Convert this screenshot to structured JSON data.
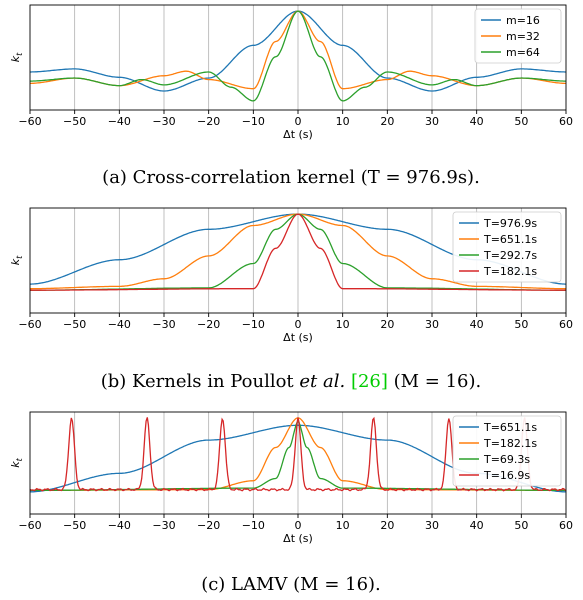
{
  "chart_data": [
    {
      "type": "line",
      "xlabel": "Δt (s)",
      "ylabel": "k_t",
      "xlim": [
        -60,
        60
      ],
      "xticks": [
        "−60",
        "−50",
        "−40",
        "−30",
        "−20",
        "−10",
        "0",
        "10",
        "20",
        "30",
        "40",
        "50",
        "60"
      ],
      "grid": "vertical",
      "legend": "top-right",
      "caption": "(a) Cross-correlation kernel (T = 976.9s).",
      "series": [
        {
          "name": "m=16",
          "color": "#1f77b4",
          "x": [
            -60,
            -50,
            -40,
            -30,
            -20,
            -10,
            0,
            10,
            20,
            30,
            40,
            50,
            60
          ],
          "y": [
            0.2,
            0.24,
            0.13,
            -0.05,
            0.12,
            0.55,
            1.0,
            0.55,
            0.12,
            -0.05,
            0.13,
            0.24,
            0.2
          ]
        },
        {
          "name": "m=32",
          "color": "#ff7f0e",
          "x": [
            -60,
            -50,
            -40,
            -30,
            -25,
            -20,
            -10,
            -5,
            0,
            5,
            10,
            20,
            25,
            30,
            40,
            50,
            60
          ],
          "y": [
            0.05,
            0.12,
            0.02,
            0.15,
            0.21,
            0.1,
            -0.02,
            0.6,
            1.0,
            0.6,
            -0.02,
            0.1,
            0.21,
            0.15,
            0.02,
            0.12,
            0.05
          ]
        },
        {
          "name": "m=64",
          "color": "#2ca02c",
          "x": [
            -60,
            -50,
            -40,
            -35,
            -30,
            -20,
            -15,
            -10,
            -5,
            0,
            5,
            10,
            15,
            20,
            30,
            35,
            40,
            50,
            60
          ],
          "y": [
            0.08,
            0.12,
            0.02,
            0.1,
            0.03,
            0.2,
            0.0,
            -0.18,
            0.4,
            1.0,
            0.4,
            -0.18,
            0.0,
            0.2,
            0.03,
            0.1,
            0.02,
            0.12,
            0.08
          ]
        }
      ]
    },
    {
      "type": "line",
      "xlabel": "Δt (s)",
      "ylabel": "k_t",
      "xlim": [
        -60,
        60
      ],
      "xticks": [
        "−60",
        "−50",
        "−40",
        "−30",
        "−20",
        "−10",
        "0",
        "10",
        "20",
        "30",
        "40",
        "50",
        "60"
      ],
      "grid": "vertical",
      "legend": "top-right",
      "caption_parts": [
        "(b) Kernels in Poullot ",
        "et al.",
        " ",
        "[26]",
        " (M = 16)."
      ],
      "series": [
        {
          "name": "T=976.9s",
          "color": "#1f77b4",
          "x": [
            -60,
            -40,
            -20,
            0,
            20,
            40,
            60
          ],
          "y": [
            0.08,
            0.4,
            0.8,
            1.0,
            0.8,
            0.4,
            0.08
          ]
        },
        {
          "name": "T=651.1s",
          "color": "#ff7f0e",
          "x": [
            -60,
            -40,
            -30,
            -20,
            -10,
            0,
            10,
            20,
            30,
            40,
            60
          ],
          "y": [
            0.02,
            0.05,
            0.15,
            0.45,
            0.85,
            1.0,
            0.85,
            0.45,
            0.15,
            0.05,
            0.02
          ]
        },
        {
          "name": "T=292.7s",
          "color": "#2ca02c",
          "x": [
            -60,
            -20,
            -10,
            -5,
            0,
            5,
            10,
            20,
            60
          ],
          "y": [
            0.0,
            0.03,
            0.35,
            0.8,
            1.0,
            0.8,
            0.35,
            0.03,
            0.0
          ]
        },
        {
          "name": "T=182.1s",
          "color": "#d62728",
          "x": [
            -60,
            -10,
            -5,
            0,
            5,
            10,
            60
          ],
          "y": [
            0.0,
            0.02,
            0.55,
            1.0,
            0.55,
            0.02,
            0.0
          ]
        }
      ]
    },
    {
      "type": "line",
      "xlabel": "Δt (s)",
      "ylabel": "k_t",
      "xlim": [
        -60,
        60
      ],
      "xticks": [
        "−60",
        "−50",
        "−40",
        "−30",
        "−20",
        "−10",
        "0",
        "10",
        "20",
        "30",
        "40",
        "50",
        "60"
      ],
      "grid": "vertical",
      "legend": "top-right",
      "caption": "(c) LAMV (M = 16).",
      "series": [
        {
          "name": "T=651.1s",
          "color": "#1f77b4",
          "x": [
            -60,
            -40,
            -20,
            0,
            20,
            40,
            60
          ],
          "y": [
            0.0,
            0.25,
            0.7,
            0.9,
            0.7,
            0.25,
            0.0
          ]
        },
        {
          "name": "T=182.1s",
          "color": "#ff7f0e",
          "x": [
            -60,
            -20,
            -10,
            -5,
            0,
            5,
            10,
            20,
            60
          ],
          "y": [
            0.02,
            0.03,
            0.15,
            0.6,
            1.0,
            0.6,
            0.15,
            0.03,
            0.02
          ]
        },
        {
          "name": "T=69.3s",
          "color": "#2ca02c",
          "x": [
            -60,
            -10,
            -5,
            -2,
            0,
            2,
            5,
            10,
            60
          ],
          "y": [
            0.02,
            0.05,
            0.18,
            0.6,
            0.95,
            0.6,
            0.18,
            0.05,
            0.02
          ]
        },
        {
          "name": "T=16.9s",
          "color": "#d62728",
          "peaks": [
            -50.7,
            -33.8,
            -16.9,
            0,
            16.9,
            33.8,
            50.7
          ],
          "peak_height": 1.0,
          "baseline": 0.03
        }
      ]
    }
  ],
  "colors": {
    "cite": "#00cc00",
    "grid": "#b0b0b0"
  }
}
